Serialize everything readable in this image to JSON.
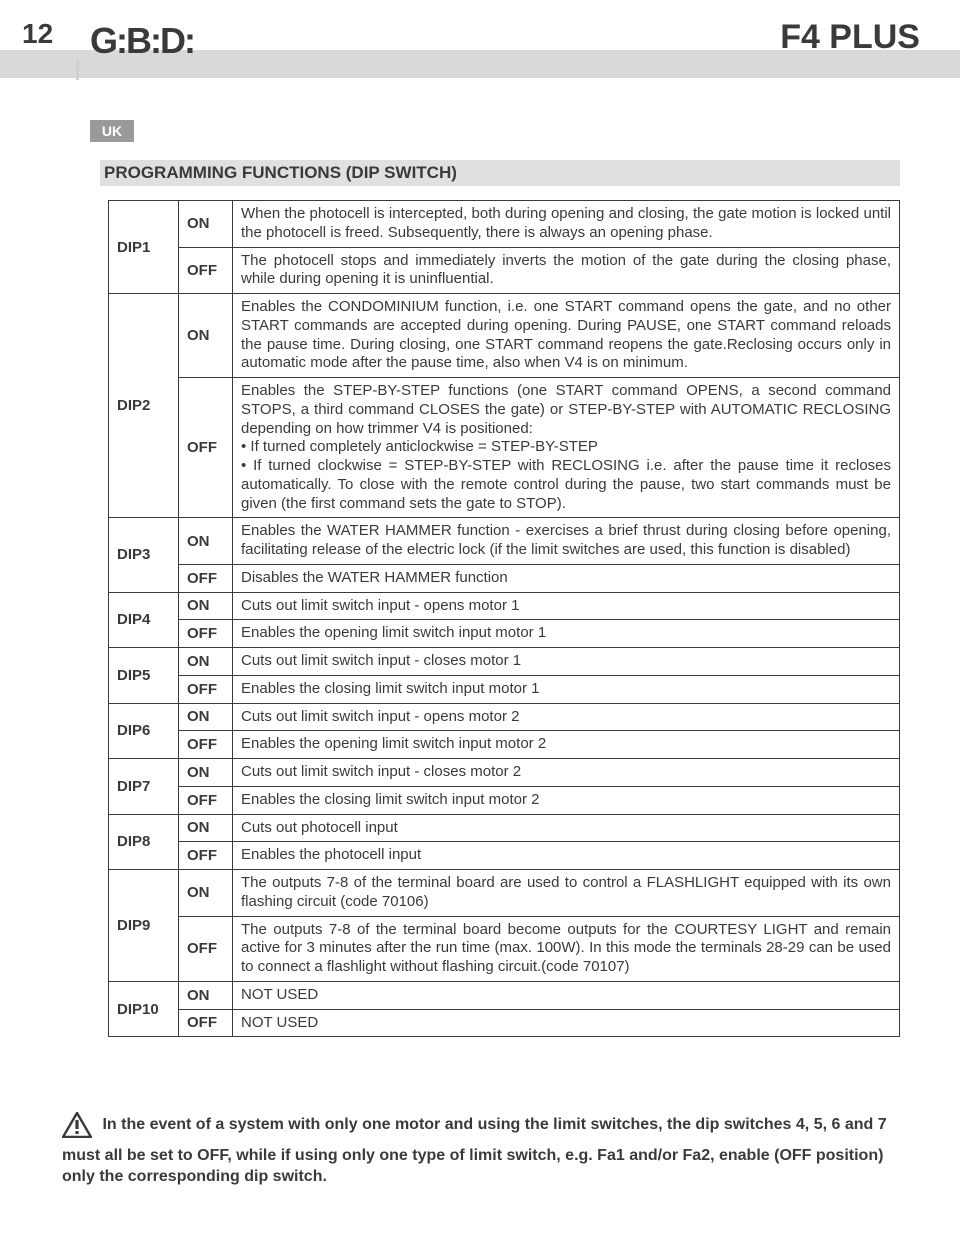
{
  "page": {
    "number": "12",
    "logo": "G:B:D:",
    "product": "F4 PLUS",
    "lang_badge": "UK",
    "section_title": "PROGRAMMING FUNCTIONS (DIP SWITCH)"
  },
  "colors": {
    "band": "#d9d9d9",
    "badge": "#9a9a9a",
    "section": "#e0e0e0",
    "text": "#3a3a3a",
    "border": "#3a3a3a",
    "bg": "#ffffff"
  },
  "dip": [
    {
      "name": "DIP1",
      "on": "When the photocell is intercepted, both during opening and closing, the gate motion is locked until the photocell is freed. Subsequently, there is always an opening phase.",
      "off": "The photocell stops and immediately inverts the motion of the gate during the closing phase, while during opening it is uninfluential."
    },
    {
      "name": "DIP2",
      "on": "Enables the CONDOMINIUM function, i.e. one START command opens the gate, and no other START commands are accepted during opening. During PAUSE, one START command reloads the pause time. During closing, one START command reopens the gate.Reclosing occurs only in automatic mode after the pause time, also when V4 is on minimum.",
      "off": "Enables the STEP-BY-STEP functions (one START command OPENS, a second command STOPS, a third command CLOSES the gate) or STEP-BY-STEP with AUTOMATIC RECLOSING depending on how trimmer V4 is positioned:\n• If turned completely anticlockwise = STEP-BY-STEP\n• If turned clockwise = STEP-BY-STEP with RECLOSING i.e. after the pause time it recloses automatically. To close with the remote control during the pause, two start commands must be given (the first command sets the gate to STOP)."
    },
    {
      "name": "DIP3",
      "on": "Enables the WATER HAMMER function - exercises a brief thrust during closing before opening, facilitating release of the electric lock (if the limit switches are used, this function is disabled)",
      "off": "Disables the WATER HAMMER function"
    },
    {
      "name": "DIP4",
      "on": "Cuts out limit switch input - opens motor 1",
      "off": "Enables the opening limit switch input motor 1"
    },
    {
      "name": "DIP5",
      "on": "Cuts out limit switch input - closes motor 1",
      "off": "Enables the closing limit switch input motor 1"
    },
    {
      "name": "DIP6",
      "on": "Cuts out limit switch input - opens motor 2",
      "off": "Enables the opening limit switch input motor 2"
    },
    {
      "name": "DIP7",
      "on": "Cuts out limit switch input - closes motor 2",
      "off": "Enables the closing limit switch input motor 2"
    },
    {
      "name": "DIP8",
      "on": "Cuts out photocell input",
      "off": "Enables the photocell input"
    },
    {
      "name": "DIP9",
      "on": "The outputs 7-8 of the terminal board are used to control a FLASHLIGHT equipped with its own flashing circuit (code 70106)",
      "off": "The outputs 7-8 of the terminal board become outputs for the COURTESY LIGHT and remain active for 3 minutes after the run time (max. 100W). In this mode the terminals 28-29 can be used to connect a flashlight without flashing circuit.(code 70107)"
    },
    {
      "name": "DIP10",
      "on": "NOT USED",
      "off": "NOT USED"
    }
  ],
  "states": {
    "on": "ON",
    "off": "OFF"
  },
  "footer": "In the event of a system with only one motor and using the limit switches, the dip switches 4, 5, 6 and 7 must all be set to OFF, while if using only one type of limit switch, e.g. Fa1 and/or Fa2, enable (OFF position) only the corresponding dip switch."
}
